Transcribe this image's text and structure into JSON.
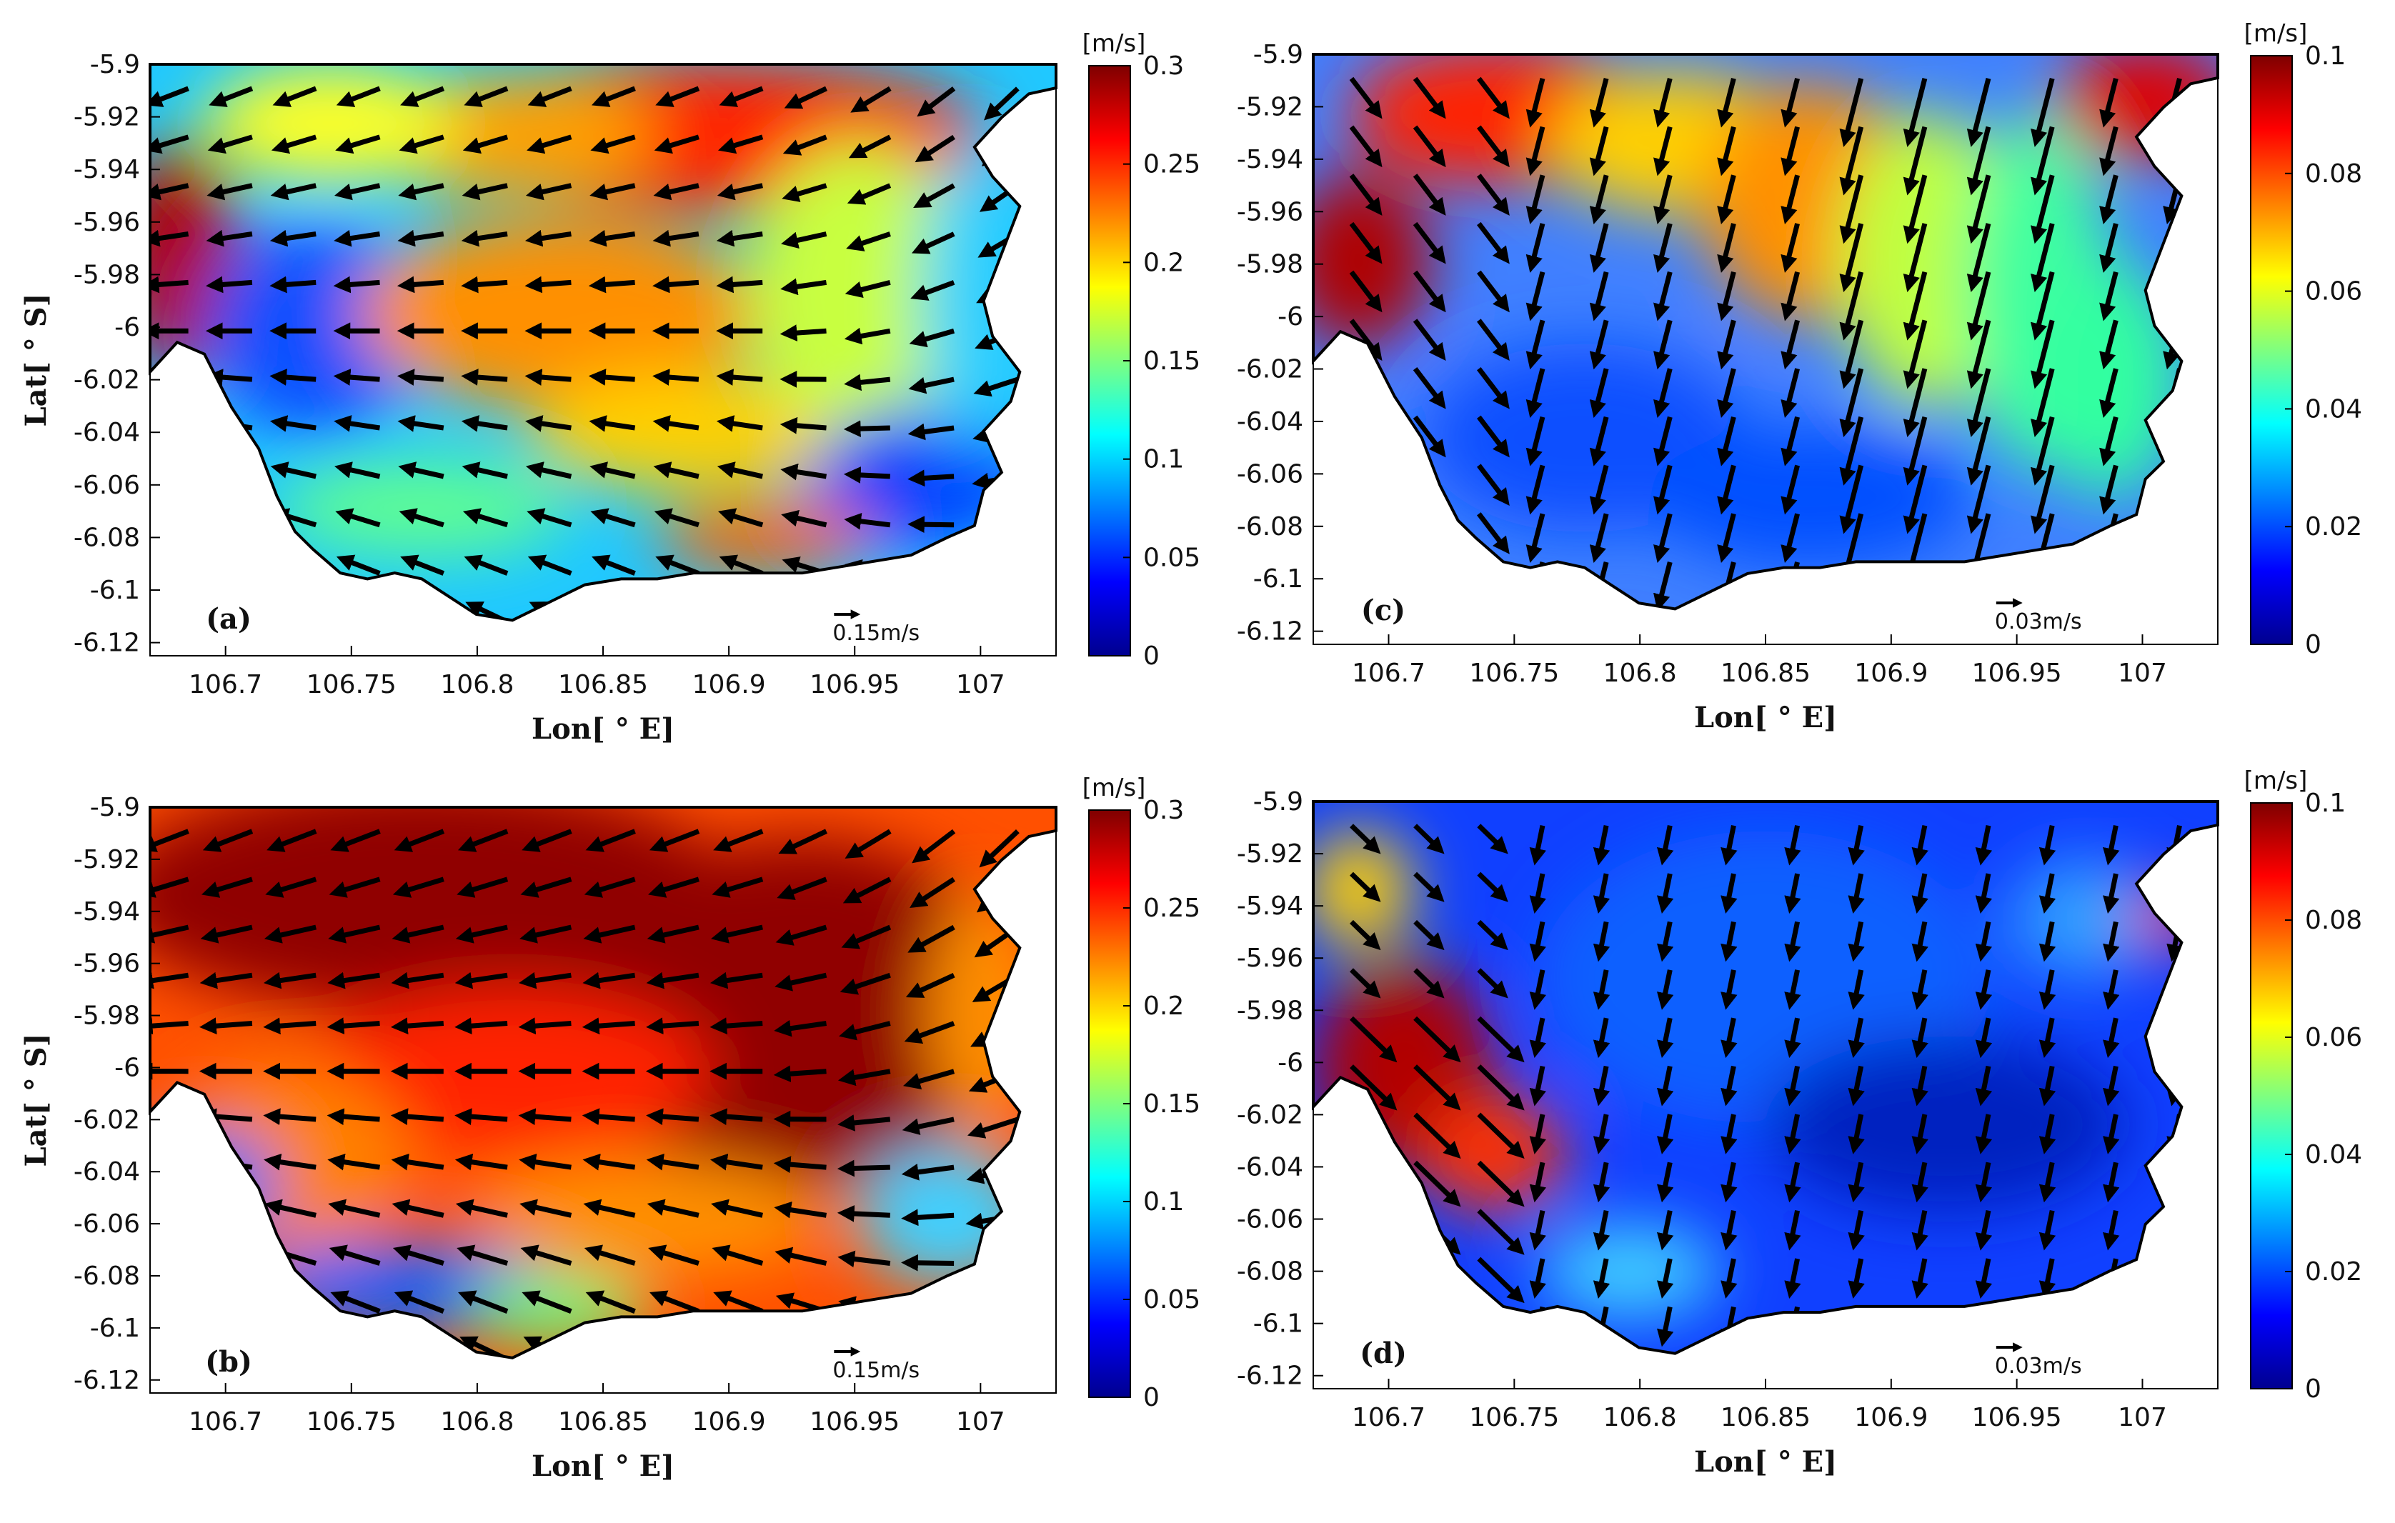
{
  "chart_data": [
    {
      "panel_label": "(a)",
      "type": "heatmap",
      "xlabel": "Lon[ ° E]",
      "ylabel": "Lat[ ° S]",
      "x_ticks": [
        "106.7",
        "106.75",
        "106.8",
        "106.85",
        "106.9",
        "106.95",
        "107"
      ],
      "y_ticks": [
        "-5.9",
        "-5.92",
        "-5.94",
        "-5.96",
        "-5.98",
        "-6",
        "-6.02",
        "-6.04",
        "-6.06",
        "-6.08",
        "-6.1",
        "-6.12"
      ],
      "xlim": [
        106.67,
        107.03
      ],
      "ylim": [
        -6.125,
        -5.9
      ],
      "colorbar": {
        "unit": "[m/s]",
        "range": [
          0,
          0.3
        ],
        "ticks": [
          "0",
          "0.05",
          "0.1",
          "0.15",
          "0.2",
          "0.25",
          "0.3"
        ]
      },
      "scale_arrow_label": "0.15m/s",
      "colormap": "jet",
      "grid": false
    },
    {
      "panel_label": "(b)",
      "type": "heatmap",
      "xlabel": "Lon[ ° E]",
      "ylabel": "Lat[ ° S]",
      "x_ticks": [
        "106.7",
        "106.75",
        "106.8",
        "106.85",
        "106.9",
        "106.95",
        "107"
      ],
      "y_ticks": [
        "-5.9",
        "-5.92",
        "-5.94",
        "-5.96",
        "-5.98",
        "-6",
        "-6.02",
        "-6.04",
        "-6.06",
        "-6.08",
        "-6.1",
        "-6.12"
      ],
      "xlim": [
        106.67,
        107.03
      ],
      "ylim": [
        -6.125,
        -5.9
      ],
      "colorbar": {
        "unit": "[m/s]",
        "range": [
          0,
          0.3
        ],
        "ticks": [
          "0",
          "0.05",
          "0.1",
          "0.15",
          "0.2",
          "0.25",
          "0.3"
        ]
      },
      "scale_arrow_label": "0.15m/s",
      "colormap": "jet",
      "grid": false
    },
    {
      "panel_label": "(c)",
      "type": "heatmap",
      "xlabel": "Lon[ ° E]",
      "ylabel": "",
      "x_ticks": [
        "106.7",
        "106.75",
        "106.8",
        "106.85",
        "106.9",
        "106.95",
        "107"
      ],
      "y_ticks": [
        "-5.9",
        "-5.92",
        "-5.94",
        "-5.96",
        "-5.98",
        "-6",
        "-6.02",
        "-6.04",
        "-6.06",
        "-6.08",
        "-6.1",
        "-6.12"
      ],
      "xlim": [
        106.67,
        107.03
      ],
      "ylim": [
        -6.125,
        -5.9
      ],
      "colorbar": {
        "unit": "[m/s]",
        "range": [
          0,
          0.1
        ],
        "ticks": [
          "0",
          "0.02",
          "0.04",
          "0.06",
          "0.08",
          "0.1"
        ]
      },
      "scale_arrow_label": "0.03m/s",
      "colormap": "jet",
      "grid": false
    },
    {
      "panel_label": "(d)",
      "type": "heatmap",
      "xlabel": "Lon[ ° E]",
      "ylabel": "",
      "x_ticks": [
        "106.7",
        "106.75",
        "106.8",
        "106.85",
        "106.9",
        "106.95",
        "107"
      ],
      "y_ticks": [
        "-5.9",
        "-5.92",
        "-5.94",
        "-5.96",
        "-5.98",
        "-6",
        "-6.02",
        "-6.04",
        "-6.06",
        "-6.08",
        "-6.1",
        "-6.12"
      ],
      "xlim": [
        106.67,
        107.03
      ],
      "ylim": [
        -6.125,
        -5.9
      ],
      "colorbar": {
        "unit": "[m/s]",
        "range": [
          0,
          0.1
        ],
        "ticks": [
          "0",
          "0.02",
          "0.04",
          "0.06",
          "0.08",
          "0.1"
        ]
      },
      "scale_arrow_label": "0.03m/s",
      "colormap": "jet",
      "grid": false
    }
  ]
}
